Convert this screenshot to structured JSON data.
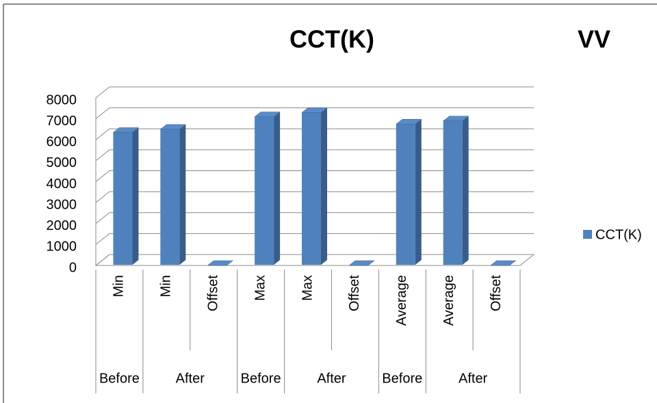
{
  "chart_data": {
    "type": "bar3d",
    "title": "CCT(K)",
    "annotation": "VV",
    "categories": [
      "Min",
      "Min",
      "Offset",
      "Max",
      "Max",
      "Offset",
      "Average",
      "Average",
      "Offset"
    ],
    "groups": [
      "Before",
      "After",
      null,
      "Before",
      "After",
      null,
      "Before",
      "After",
      null
    ],
    "series": [
      {
        "name": "CCT(K)",
        "color": "#4f81bd",
        "values": [
          6350,
          6500,
          0,
          7100,
          7300,
          0,
          6750,
          6900,
          0
        ]
      }
    ],
    "ylim": [
      0,
      8000
    ],
    "yticks": [
      0,
      1000,
      2000,
      3000,
      4000,
      5000,
      6000,
      7000,
      8000
    ],
    "grid": true,
    "legend": "right"
  }
}
